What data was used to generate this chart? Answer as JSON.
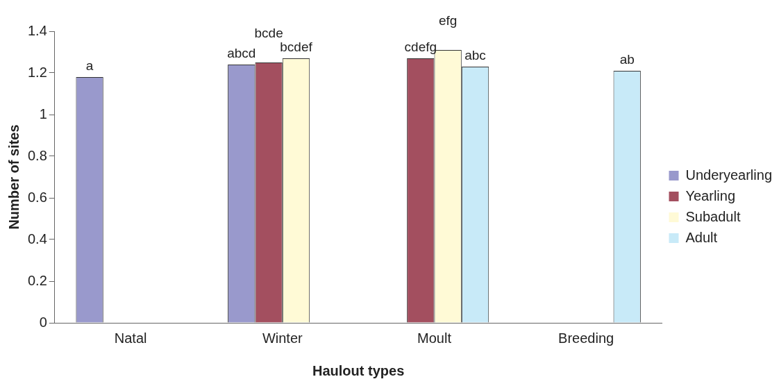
{
  "chart_data": {
    "type": "bar",
    "xlabel": "Haulout types",
    "ylabel": "Number of sites",
    "categories": [
      "Natal",
      "Winter",
      "Moult",
      "Breeding"
    ],
    "series": [
      {
        "name": "Underyearling",
        "color": "#9999cc",
        "values": [
          1.18,
          1.24,
          null,
          null
        ],
        "value_labels": [
          "a",
          "abcd",
          null,
          null
        ]
      },
      {
        "name": "Yearling",
        "color": "#a34f5f",
        "values": [
          null,
          1.25,
          1.27,
          null
        ],
        "value_labels": [
          null,
          "bcde",
          "cdefg",
          null
        ]
      },
      {
        "name": "Subadult",
        "color": "#fffad6",
        "values": [
          null,
          1.27,
          1.31,
          null
        ],
        "value_labels": [
          null,
          "bcdef",
          "efg",
          null
        ]
      },
      {
        "name": "Adult",
        "color": "#c8eaf8",
        "values": [
          null,
          null,
          1.23,
          1.21
        ],
        "value_labels": [
          null,
          null,
          "abc",
          "ab"
        ]
      }
    ],
    "ylim": [
      0,
      1.4
    ],
    "yticks": [
      0,
      0.2,
      0.4,
      0.6,
      0.8,
      1,
      1.2,
      1.4
    ],
    "grid": false,
    "legend": "right"
  }
}
